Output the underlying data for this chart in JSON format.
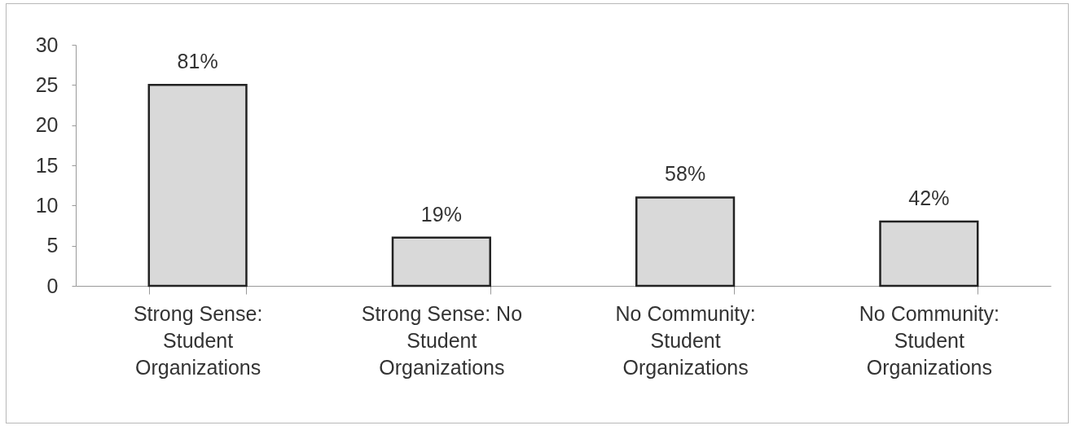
{
  "chart_data": {
    "type": "bar",
    "categories": [
      "Strong Sense: Student Organizations",
      "Strong Sense: No Student Organizations",
      "No Community: Student Organizations",
      "No Community: Student Organizations"
    ],
    "values": [
      25,
      6,
      11,
      8
    ],
    "color": "#d9d9d9",
    "ylim": [
      0,
      30
    ],
    "yticks": [
      0,
      5,
      10,
      15,
      20,
      25,
      30
    ],
    "annotations": [
      {
        "text": "81%",
        "x": "Strong Sense: Student Organizations",
        "y": 25
      },
      {
        "text": "19%",
        "x": "Strong Sense: No Student Organizations",
        "y": 6
      },
      {
        "text": "58%",
        "x": "No Community: Student Organizations",
        "y": 11
      },
      "42%"
    ]
  }
}
